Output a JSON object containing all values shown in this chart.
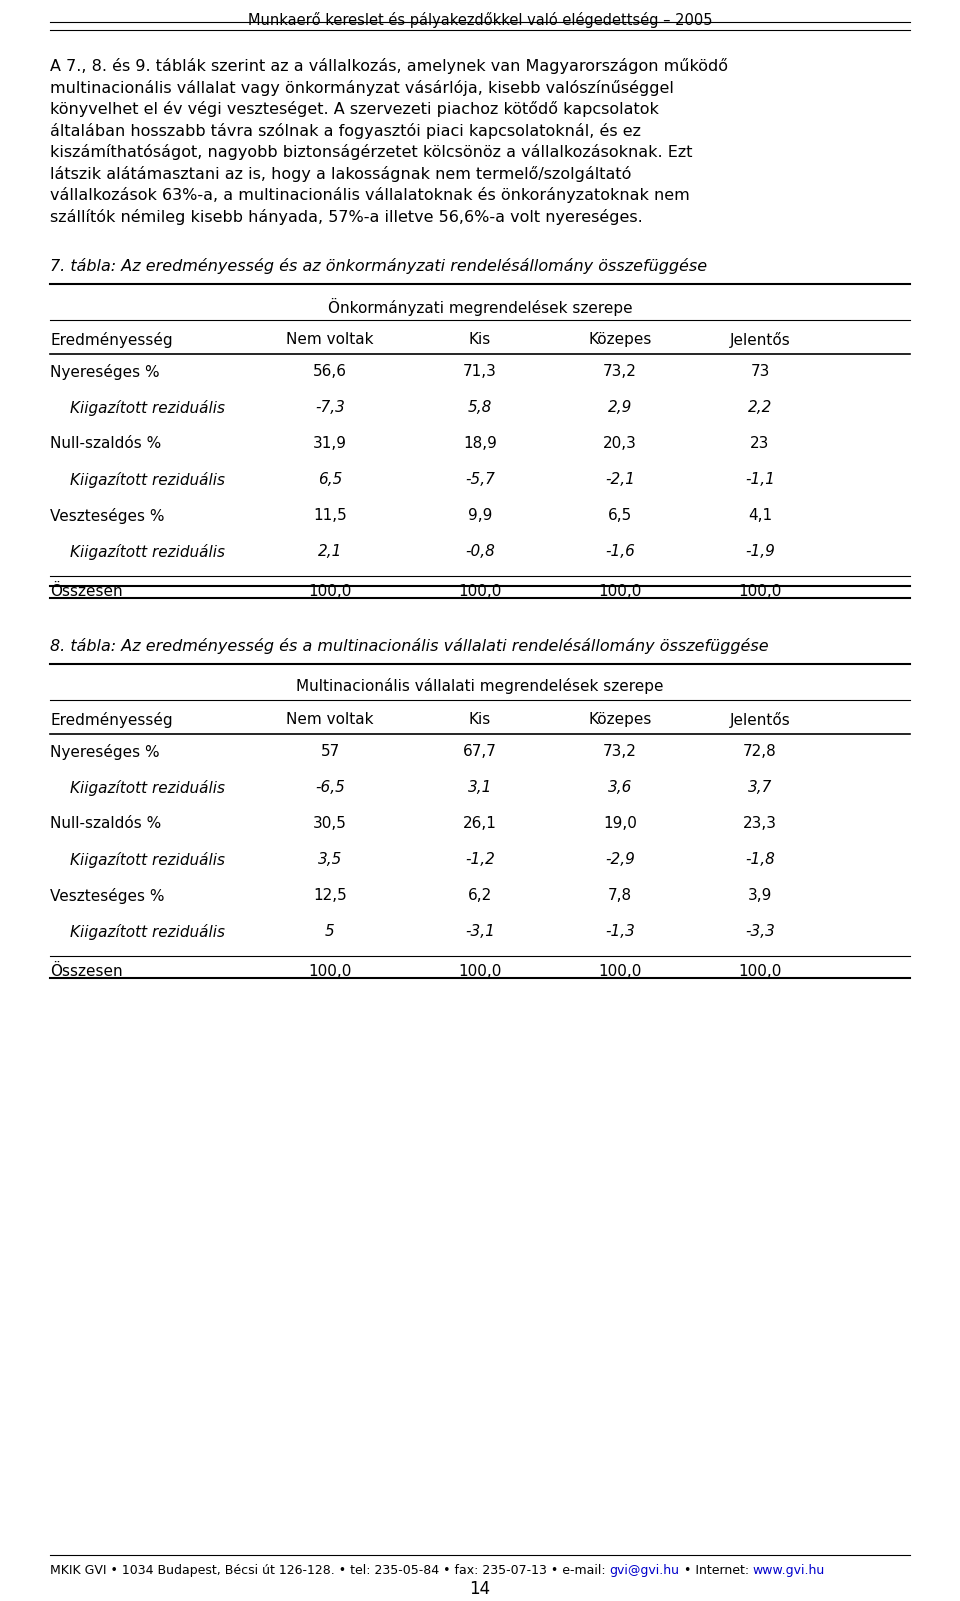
{
  "header_text": "Munkaerő kereslet és pályakezdőkkel való elégedettség – 2005",
  "paragraph1_lines": [
    "A 7., 8. és 9. táblák szerint az a vállalkozás, amelynek van Magyarországon működő",
    "multinacionális vállalat vagy önkormányzat vásárlója, kisebb valószínűséggel",
    "könyvelhet el év végi veszteséget. A szervezeti piachoz kötődő kapcsolatok",
    "általában hosszabb távra szólnak a fogyasztói piaci kapcsolatoknál, és ez",
    "kiszámíthatóságot, nagyobb biztonságérzetet kölcsönöz a vállalkozásoknak. Ezt",
    "látszik alátámasztani az is, hogy a lakosságnak nem termelő/szolgáltató",
    "vállalkozások 63%-a, a multinacionális vállalatoknak és önkorányzatoknak nem",
    "szállítók némileg kisebb hányada, 57%-a illetve 56,6%-a volt nyereséges."
  ],
  "table7_title": "7. tábla: Az eredményesség és az önkormányzati rendelésállomány összefüggése",
  "table7_subtitle": "Önkormányzati megrendelések szerepe",
  "table7_headers": [
    "Eredményesség",
    "Nem voltak",
    "Kis",
    "Közepes",
    "Jelentős"
  ],
  "table7_rows": [
    {
      "label": "Nyereséges %",
      "italic": false,
      "values": [
        "56,6",
        "71,3",
        "73,2",
        "73"
      ]
    },
    {
      "label": "Kiigazított reziduális",
      "italic": true,
      "values": [
        "-7,3",
        "5,8",
        "2,9",
        "2,2"
      ]
    },
    {
      "label": "Null-szaldós %",
      "italic": false,
      "values": [
        "31,9",
        "18,9",
        "20,3",
        "23"
      ]
    },
    {
      "label": "Kiigazított reziduális",
      "italic": true,
      "values": [
        "6,5",
        "-5,7",
        "-2,1",
        "-1,1"
      ]
    },
    {
      "label": "Veszteséges %",
      "italic": false,
      "values": [
        "11,5",
        "9,9",
        "6,5",
        "4,1"
      ]
    },
    {
      "label": "Kiigazított reziduális",
      "italic": true,
      "values": [
        "2,1",
        "-0,8",
        "-1,6",
        "-1,9"
      ]
    },
    {
      "label": "Összesen",
      "italic": false,
      "values": [
        "100,0",
        "100,0",
        "100,0",
        "100,0"
      ]
    }
  ],
  "table8_title": "8. tábla: Az eredményesség és a multinacionális vállalati rendelésállomány összefüggése",
  "table8_subtitle": "Multinacionális vállalati megrendelések szerepe",
  "table8_headers": [
    "Eredményesség",
    "Nem voltak",
    "Kis",
    "Közepes",
    "Jelentős"
  ],
  "table8_rows": [
    {
      "label": "Nyereséges %",
      "italic": false,
      "values": [
        "57",
        "67,7",
        "73,2",
        "72,8"
      ]
    },
    {
      "label": "Kiigazított reziduális",
      "italic": true,
      "values": [
        "-6,5",
        "3,1",
        "3,6",
        "3,7"
      ]
    },
    {
      "label": "Null-szaldós %",
      "italic": false,
      "values": [
        "30,5",
        "26,1",
        "19,0",
        "23,3"
      ]
    },
    {
      "label": "Kiigazított reziduális",
      "italic": true,
      "values": [
        "3,5",
        "-1,2",
        "-2,9",
        "-1,8"
      ]
    },
    {
      "label": "Veszteséges %",
      "italic": false,
      "values": [
        "12,5",
        "6,2",
        "7,8",
        "3,9"
      ]
    },
    {
      "label": "Kiigazított reziduális",
      "italic": true,
      "values": [
        "5",
        "-3,1",
        "-1,3",
        "-3,3"
      ]
    },
    {
      "label": "Összesen",
      "italic": false,
      "values": [
        "100,0",
        "100,0",
        "100,0",
        "100,0"
      ]
    }
  ],
  "footer_prefix": "MKIK GVI • 1034 Budapest, Bécsi út 126-128. • tel: 235-05-84 • fax: 235-07-13 • e-mail: ",
  "footer_email": "gvi@gvi.hu",
  "footer_mid": " • Internet: ",
  "footer_url": "www.gvi.hu",
  "page_number": "14",
  "bg_color": "#ffffff",
  "text_color": "#000000",
  "link_color": "#0000cc"
}
